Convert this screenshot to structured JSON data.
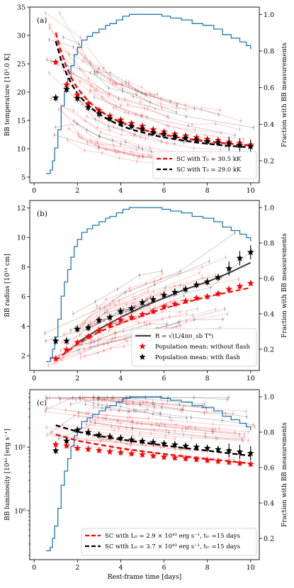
{
  "chart_data": [
    {
      "type": "line",
      "panel_label": "(a)",
      "xlabel": "",
      "ylabel": "BB temperature [10$^3$ K]",
      "ylabel_display": "BB temperature [10³.0 K]",
      "y2label": "Fraction with BB measurements",
      "xlim": [
        -0.2,
        10.4
      ],
      "ylim": [
        4,
        35
      ],
      "y2lim": [
        0.08,
        1.04
      ],
      "x_ticks": [
        "0",
        "2",
        "4",
        "6",
        "8",
        "10"
      ],
      "y_ticks": [
        "5",
        "10",
        "15",
        "20",
        "25",
        "30",
        "35"
      ],
      "y2_ticks": [
        "0.2",
        "0.4",
        "0.6",
        "0.8",
        "1.0"
      ],
      "legend_position": "lower right",
      "legend": [
        {
          "label": "SC with T₀ = 30.5 kK",
          "color": "#ff0000",
          "style": "dashed"
        },
        {
          "label": "SC with T₀ = 29.0 kK",
          "color": "#000000",
          "style": "dashed"
        }
      ],
      "series": [
        {
          "name": "SC with T₀ = 30.5 kK",
          "kind": "model",
          "color": "#ff0000",
          "x": [
            1.0,
            1.25,
            1.5,
            1.75,
            2.0,
            2.5,
            3.0,
            3.5,
            4.0,
            4.5,
            5.0,
            5.5,
            6.0,
            6.5,
            7.0,
            7.5,
            8.0,
            8.5,
            9.0,
            9.5,
            10.0
          ],
          "y": [
            30.5,
            27.0,
            24.4,
            22.3,
            20.7,
            18.4,
            16.8,
            15.6,
            14.7,
            14.0,
            13.4,
            12.9,
            12.5,
            12.1,
            11.8,
            11.5,
            11.3,
            11.1,
            10.9,
            10.7,
            10.6
          ]
        },
        {
          "name": "SC with T₀ = 29.0 kK",
          "kind": "model",
          "color": "#000000",
          "x": [
            1.0,
            1.25,
            1.5,
            1.75,
            2.0,
            2.5,
            3.0,
            3.5,
            4.0,
            4.5,
            5.0,
            5.5,
            6.0,
            6.5,
            7.0,
            7.5,
            8.0,
            8.5,
            9.0,
            9.5,
            10.0
          ],
          "y": [
            29.0,
            25.6,
            23.2,
            21.3,
            19.8,
            17.6,
            16.1,
            15.0,
            14.1,
            13.4,
            12.9,
            12.4,
            12.0,
            11.7,
            11.4,
            11.1,
            10.9,
            10.7,
            10.5,
            10.4,
            10.2
          ]
        },
        {
          "name": "",
          "kind": "mean-no-flash",
          "color": "#ff0000",
          "x": [
            1.0,
            1.5,
            2.0,
            2.5,
            3.0,
            3.5,
            4.0,
            4.5,
            5.0,
            5.5,
            6.0,
            6.5,
            7.0,
            7.5,
            8.0,
            8.5,
            9.0,
            9.5,
            10.0
          ],
          "y": [
            25.3,
            21.3,
            19.5,
            18.0,
            16.8,
            15.8,
            15.1,
            14.5,
            14.0,
            13.4,
            13.0,
            12.6,
            12.3,
            12.0,
            11.7,
            11.5,
            11.2,
            11.0,
            10.7
          ]
        },
        {
          "name": "",
          "kind": "mean-with-flash",
          "color": "#000000",
          "x": [
            1.0,
            1.5,
            2.0,
            2.5,
            3.0,
            3.5,
            4.0,
            4.5,
            5.0,
            5.5,
            6.0,
            6.5,
            7.0,
            7.5,
            8.0,
            8.5,
            9.0,
            9.5,
            10.0
          ],
          "y": [
            19.0,
            20.5,
            18.9,
            17.3,
            16.2,
            15.3,
            14.6,
            14.0,
            13.5,
            12.9,
            12.6,
            12.2,
            11.9,
            11.6,
            11.3,
            11.1,
            10.9,
            10.6,
            10.4
          ]
        },
        {
          "name": "",
          "kind": "fraction",
          "color": "#1f77b4",
          "axis": "y2",
          "x": [
            0.55,
            0.75,
            0.85,
            0.95,
            1.1,
            1.25,
            1.4,
            1.55,
            1.7,
            1.85,
            2.0,
            2.2,
            2.45,
            2.7,
            3.0,
            3.3,
            3.5,
            3.8,
            4.1,
            4.4,
            4.8,
            5.2,
            5.5,
            5.9,
            6.3,
            6.8,
            7.3,
            7.8,
            8.3,
            8.7,
            9.1,
            9.5,
            9.8,
            10.0
          ],
          "y": [
            0.13,
            0.15,
            0.2,
            0.27,
            0.37,
            0.5,
            0.58,
            0.65,
            0.72,
            0.78,
            0.82,
            0.86,
            0.88,
            0.9,
            0.92,
            0.94,
            0.95,
            0.97,
            0.99,
            1.0,
            1.0,
            1.0,
            1.0,
            0.99,
            0.98,
            0.97,
            0.95,
            0.94,
            0.92,
            0.89,
            0.87,
            0.85,
            0.83,
            0.81
          ]
        }
      ]
    },
    {
      "type": "line",
      "panel_label": "(b)",
      "xlabel": "",
      "ylabel": "BB radius [10$^{14}$ cm]",
      "ylabel_display": "BB radius [10¹⁴ cm]",
      "y2label": "Fraction with BB measurements",
      "xlim": [
        -0.2,
        10.4
      ],
      "ylim": [
        1.0,
        12.5
      ],
      "y2lim": [
        0.08,
        1.04
      ],
      "x_ticks": [
        "0",
        "2",
        "4",
        "6",
        "8",
        "10"
      ],
      "y_ticks": [
        "2",
        "4",
        "6",
        "8",
        "10",
        "12"
      ],
      "y2_ticks": [
        "0.2",
        "0.4",
        "0.6",
        "0.8",
        "1.0"
      ],
      "legend_position": "lower right",
      "legend": [
        {
          "label": "R = √(L/4πσ_sb T⁴)",
          "color": "#404040",
          "style": "solid"
        },
        {
          "label": "Population mean: without flash",
          "color": "#ff0000",
          "style": "star"
        },
        {
          "label": "Population mean: with flash",
          "color": "#000000",
          "style": "star"
        }
      ],
      "series": [
        {
          "name": "Population mean: without flash",
          "kind": "mean-no-flash",
          "color": "#ff0000",
          "x": [
            1.0,
            1.5,
            2.0,
            2.5,
            3.0,
            3.5,
            4.0,
            4.5,
            5.0,
            5.5,
            6.0,
            6.5,
            7.0,
            7.5,
            8.0,
            8.5,
            9.0,
            9.5,
            10.0
          ],
          "y": [
            1.8,
            2.4,
            2.9,
            3.3,
            3.7,
            4.1,
            4.4,
            4.6,
            4.8,
            5.0,
            5.3,
            5.5,
            5.7,
            5.9,
            6.0,
            6.2,
            6.5,
            6.7,
            6.9
          ]
        },
        {
          "name": "Population mean: with flash",
          "kind": "mean-with-flash",
          "color": "#000000",
          "x": [
            1.0,
            1.5,
            2.0,
            2.5,
            3.0,
            3.5,
            4.0,
            4.5,
            5.0,
            5.5,
            6.0,
            6.5,
            7.0,
            7.5,
            8.0,
            8.5,
            9.0,
            9.5,
            10.0
          ],
          "y": [
            3.0,
            3.0,
            3.8,
            3.9,
            4.4,
            4.6,
            5.0,
            5.2,
            5.6,
            5.8,
            6.1,
            6.3,
            6.5,
            6.8,
            7.0,
            7.3,
            7.9,
            8.6,
            9.0
          ]
        },
        {
          "name": "",
          "kind": "model-no-flash",
          "color": "#ff0000",
          "x": [
            1.0,
            2.0,
            3.0,
            4.0,
            5.0,
            6.0,
            7.0,
            8.0,
            9.0,
            10.0
          ],
          "y": [
            1.7,
            2.8,
            3.6,
            4.2,
            4.7,
            5.2,
            5.6,
            6.0,
            6.3,
            6.6
          ]
        },
        {
          "name": "R = √(L/4πσ_sb T⁴)",
          "kind": "model-with-flash",
          "color": "#404040",
          "x": [
            2.0,
            3.0,
            4.0,
            5.0,
            6.0,
            7.0,
            8.0,
            9.0,
            10.0
          ],
          "y": [
            2.9,
            3.8,
            4.6,
            5.3,
            5.9,
            6.5,
            7.0,
            7.6,
            8.3
          ]
        },
        {
          "name": "",
          "kind": "fraction",
          "color": "#1f77b4",
          "axis": "y2",
          "x": [
            0.55,
            0.75,
            0.85,
            0.95,
            1.1,
            1.25,
            1.4,
            1.55,
            1.7,
            1.85,
            2.0,
            2.2,
            2.45,
            2.7,
            3.0,
            3.3,
            3.5,
            3.8,
            4.1,
            4.4,
            4.8,
            5.2,
            5.5,
            5.9,
            6.3,
            6.8,
            7.3,
            7.8,
            8.3,
            8.7,
            9.1,
            9.5,
            9.8,
            10.0
          ],
          "y": [
            0.13,
            0.15,
            0.2,
            0.27,
            0.37,
            0.5,
            0.58,
            0.65,
            0.72,
            0.78,
            0.82,
            0.86,
            0.88,
            0.9,
            0.92,
            0.94,
            0.95,
            0.97,
            0.99,
            1.0,
            1.0,
            1.0,
            1.0,
            0.99,
            0.98,
            0.97,
            0.95,
            0.94,
            0.92,
            0.89,
            0.87,
            0.85,
            0.83,
            0.81
          ]
        }
      ]
    },
    {
      "type": "line",
      "panel_label": "(c)",
      "xlabel": "Rest-frame time [days]",
      "ylabel": "BB luminosity [10$^{42}$ [erg s$^{-1}$]",
      "ylabel_display": "BB luminosity [10⁴² [erg s⁻¹]",
      "y2label": "Fraction with BB measurements",
      "xlim": [
        -0.2,
        10.4
      ],
      "ylim": [
        0.17,
        80
      ],
      "yscale": "log",
      "y2lim": [
        0.08,
        1.04
      ],
      "x_ticks": [
        "0",
        "2",
        "4",
        "6",
        "8",
        "10"
      ],
      "y_ticks": [
        "10⁰",
        "10¹"
      ],
      "y2_ticks": [
        "0.2",
        "0.4",
        "0.6",
        "0.8",
        "1.0"
      ],
      "legend_position": "lower right",
      "legend": [
        {
          "label": "SC with L₀ = 2.9 × 10⁴³ erg s⁻¹, tₜᵣ =15 days",
          "color": "#ff0000",
          "style": "dashed"
        },
        {
          "label": "SC with L₀ = 3.7 × 10⁴³ erg s⁻¹, tₜᵣ =15 days",
          "color": "#000000",
          "style": "dashed"
        }
      ],
      "series": [
        {
          "name": "SC with L₀ = 2.9 × 10⁴³ erg s⁻¹, tₜᵣ =15 days",
          "kind": "model",
          "color": "#ff0000",
          "x": [
            1.0,
            2.0,
            3.0,
            4.0,
            5.0,
            6.0,
            7.0,
            8.0,
            9.0,
            10.0
          ],
          "y": [
            15.8,
            12.6,
            10.9,
            9.6,
            8.6,
            7.8,
            7.1,
            6.5,
            6.0,
            5.5
          ]
        },
        {
          "name": "SC with L₀ = 3.7 × 10⁴³ erg s⁻¹, tₜᵣ =15 days",
          "kind": "model",
          "color": "#000000",
          "x": [
            1.0,
            2.0,
            3.0,
            4.0,
            5.0,
            6.0,
            7.0,
            8.0,
            9.0,
            10.0
          ],
          "y": [
            22.0,
            17.5,
            15.0,
            13.2,
            11.8,
            10.6,
            9.6,
            8.8,
            8.0,
            7.3
          ]
        },
        {
          "name": "",
          "kind": "mean-no-flash",
          "color": "#ff0000",
          "x": [
            1.0,
            1.5,
            2.0,
            2.5,
            3.0,
            3.5,
            4.0,
            4.5,
            5.0,
            5.5,
            6.0,
            6.5,
            7.0,
            7.5,
            8.0,
            8.5,
            9.0,
            9.5,
            10.0
          ],
          "y": [
            11.0,
            10.5,
            9.6,
            9.3,
            8.9,
            8.5,
            8.2,
            7.9,
            7.6,
            7.3,
            7.0,
            6.8,
            6.6,
            6.4,
            6.2,
            6.0,
            5.8,
            5.6,
            5.4
          ]
        },
        {
          "name": "",
          "kind": "mean-with-flash",
          "color": "#000000",
          "x": [
            1.0,
            1.5,
            2.0,
            2.5,
            3.0,
            3.5,
            4.0,
            4.5,
            5.0,
            5.5,
            6.0,
            6.5,
            7.0,
            7.5,
            8.0,
            8.5,
            9.0,
            9.5,
            10.0
          ],
          "y": [
            8.8,
            12.5,
            18.5,
            17.0,
            15.5,
            14.6,
            13.8,
            13.0,
            12.4,
            11.9,
            11.3,
            10.9,
            10.4,
            10.0,
            9.6,
            9.2,
            8.8,
            8.4,
            8.0
          ]
        },
        {
          "name": "",
          "kind": "fraction",
          "color": "#1f77b4",
          "axis": "y2",
          "x": [
            0.55,
            0.75,
            0.85,
            0.95,
            1.1,
            1.25,
            1.4,
            1.55,
            1.7,
            1.85,
            2.0,
            2.2,
            2.45,
            2.7,
            3.0,
            3.3,
            3.5,
            3.8,
            4.1,
            4.4,
            4.8,
            5.2,
            5.5,
            5.9,
            6.3,
            6.8,
            7.3,
            7.8,
            8.3,
            8.7,
            9.1,
            9.5,
            9.8,
            10.0
          ],
          "y": [
            0.13,
            0.15,
            0.2,
            0.27,
            0.37,
            0.5,
            0.58,
            0.65,
            0.72,
            0.78,
            0.82,
            0.86,
            0.88,
            0.9,
            0.92,
            0.94,
            0.95,
            0.97,
            0.99,
            1.0,
            1.0,
            1.0,
            1.0,
            0.99,
            0.98,
            0.97,
            0.95,
            0.94,
            0.92,
            0.89,
            0.87,
            0.85,
            0.83,
            0.81
          ]
        }
      ]
    }
  ]
}
